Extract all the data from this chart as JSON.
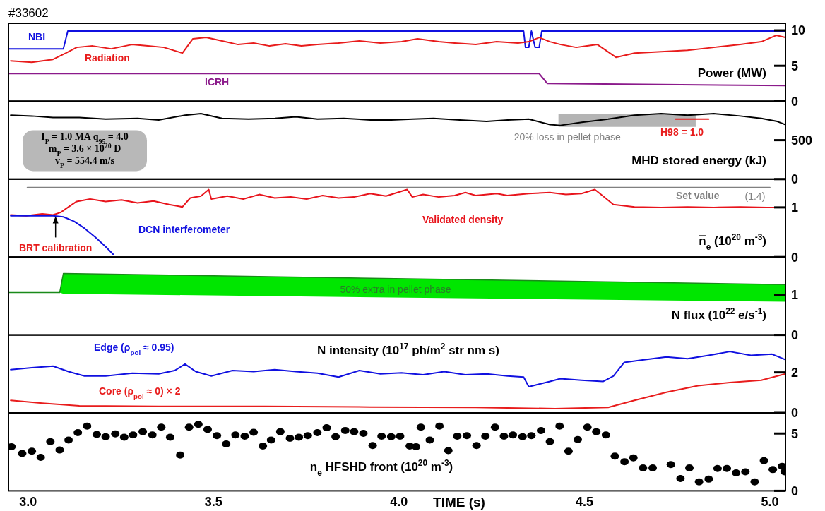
{
  "chart_data": [
    {
      "type": "line",
      "title": "#33602",
      "ylabel": "Power (MW)",
      "xlim": [
        2.947,
        5.042
      ],
      "ylim": [
        0,
        11
      ],
      "yticks": [
        0,
        5,
        10
      ],
      "tick_labels": "y",
      "series": [
        {
          "name": "NBI",
          "color": "#1010e0",
          "x": [
            2.947,
            3.095,
            3.107,
            4.336,
            4.341,
            4.35,
            4.357,
            4.367,
            4.378,
            4.385,
            5.042
          ],
          "values": [
            7.4,
            7.4,
            9.9,
            9.9,
            7.6,
            7.6,
            9.9,
            7.6,
            7.6,
            9.9,
            9.9
          ]
        },
        {
          "name": "Radiation",
          "color": "#e81c1c",
          "x": [
            2.953,
            3.01,
            3.067,
            3.102,
            3.131,
            3.174,
            3.224,
            3.28,
            3.323,
            3.366,
            3.416,
            3.444,
            3.48,
            3.523,
            3.566,
            3.608,
            3.651,
            3.694,
            3.737,
            3.78,
            3.837,
            3.893,
            3.95,
            4.007,
            4.05,
            4.107,
            4.15,
            4.207,
            4.263,
            4.321,
            4.35,
            4.378,
            4.407,
            4.436,
            4.478,
            4.507,
            4.535,
            4.585,
            4.635,
            4.707,
            4.778,
            4.849,
            4.92,
            4.977,
            5.017,
            5.042
          ],
          "values": [
            5.7,
            5.5,
            5.9,
            6.8,
            7.6,
            7.8,
            7.4,
            8.0,
            7.8,
            7.6,
            6.8,
            8.8,
            9.0,
            8.5,
            8.0,
            8.2,
            7.8,
            8.1,
            7.8,
            8.0,
            8.2,
            8.5,
            8.2,
            8.4,
            8.8,
            8.4,
            8.2,
            8.0,
            8.4,
            8.2,
            8.4,
            9.0,
            8.4,
            8.0,
            7.6,
            7.8,
            8.0,
            6.2,
            6.8,
            7.0,
            7.2,
            7.6,
            8.0,
            8.4,
            9.3,
            9.0
          ]
        },
        {
          "name": "ICRH",
          "color": "#8b1a8b",
          "x": [
            2.947,
            4.378,
            4.4,
            5.042
          ],
          "values": [
            3.9,
            3.9,
            2.5,
            2.2
          ]
        }
      ]
    },
    {
      "type": "line",
      "ylabel": "MHD stored energy (kJ)",
      "xlim": [
        2.947,
        5.042
      ],
      "ylim": [
        0,
        1000
      ],
      "yticks": [
        0,
        500
      ],
      "tick_labels": "y",
      "annotations": [
        "I$_{P}$ = 1.0 MA  q$_{95}$ = 4.0",
        "m$_{P}$ = 3.6 × 10$^{20}$ D",
        "v$_{P}$ = 554.4 m/s",
        {
          "text": "20% loss in pellet phase",
          "x": 4.454,
          "y": 670
        }
      ],
      "series": [
        {
          "color": "#b4b4b4",
          "x": [
            4.43,
            4.8
          ],
          "values": [
            null,
            null
          ],
          "lower": [
            670,
            670
          ],
          "upper": [
            840,
            840
          ]
        },
        {
          "color": "#000000",
          "x": [
            2.953,
            3.01,
            3.067,
            3.138,
            3.209,
            3.295,
            3.352,
            3.423,
            3.466,
            3.523,
            3.594,
            3.665,
            3.722,
            3.78,
            3.851,
            3.923,
            3.979,
            4.036,
            4.093,
            4.164,
            4.236,
            4.293,
            4.35,
            4.407,
            4.435,
            4.493,
            4.564,
            4.635,
            4.707,
            4.778,
            4.849,
            4.92,
            4.977,
            5.02,
            5.042
          ],
          "values": [
            820,
            810,
            790,
            790,
            770,
            780,
            760,
            820,
            840,
            780,
            770,
            780,
            800,
            770,
            780,
            760,
            760,
            770,
            780,
            760,
            740,
            760,
            770,
            700,
            690,
            730,
            770,
            820,
            840,
            820,
            840,
            810,
            780,
            740,
            700
          ]
        },
        {
          "name": "H98 = 1.0",
          "color": "#e81c1c",
          "x": [
            4.746,
            4.835
          ],
          "values": [
            770,
            770
          ]
        }
      ]
    },
    {
      "type": "line",
      "ylabel": "n̅$_{e}$ (10$^{20}$ m$^{-3}$)",
      "xlim": [
        2.947,
        5.042
      ],
      "ylim": [
        0,
        1.57
      ],
      "yticks": [
        0,
        1
      ],
      "tick_labels": "y",
      "annotations": [
        {
          "text": "(1.4)",
          "x": 4.96,
          "y": 1.4
        },
        {
          "text": "BRT calibration",
          "x": 3.074,
          "y": 0.85
        }
      ],
      "series": [
        {
          "name": "Set value",
          "color": "#808080",
          "x": [
            2.998,
            5.0
          ],
          "values": [
            1.4,
            1.4
          ]
        },
        {
          "name": "Validated density",
          "color": "#e8141c",
          "x": [
            2.953,
            2.995,
            3.038,
            3.067,
            3.088,
            3.109,
            3.131,
            3.167,
            3.209,
            3.252,
            3.295,
            3.338,
            3.38,
            3.416,
            3.437,
            3.466,
            3.487,
            3.494,
            3.537,
            3.58,
            3.623,
            3.665,
            3.708,
            3.751,
            3.794,
            3.837,
            3.879,
            3.922,
            3.965,
            4.022,
            4.036,
            4.065,
            4.107,
            4.15,
            4.179,
            4.207,
            4.264,
            4.292,
            4.35,
            4.407,
            4.45,
            4.492,
            4.528,
            4.55,
            4.578,
            4.635,
            4.707,
            4.778,
            4.849,
            4.92,
            4.991,
            5.042
          ],
          "values": [
            0.85,
            0.83,
            0.87,
            0.85,
            0.9,
            1.01,
            1.12,
            1.17,
            1.12,
            1.15,
            1.09,
            1.13,
            1.06,
            1.01,
            1.19,
            1.23,
            1.36,
            1.17,
            1.23,
            1.17,
            1.26,
            1.19,
            1.21,
            1.17,
            1.24,
            1.19,
            1.21,
            1.28,
            1.23,
            1.36,
            1.21,
            1.26,
            1.21,
            1.24,
            1.3,
            1.24,
            1.28,
            1.24,
            1.28,
            1.3,
            1.26,
            1.28,
            1.36,
            1.23,
            1.06,
            1.01,
            1.0,
            1.01,
            1.0,
            1.01,
            1.0,
            1.0
          ]
        },
        {
          "name": "DCN interferometer",
          "color": "#1010e0",
          "x": [
            2.953,
            3.067,
            3.095,
            3.124,
            3.152,
            3.181,
            3.209,
            3.23
          ],
          "values": [
            0.83,
            0.83,
            0.81,
            0.72,
            0.58,
            0.4,
            0.21,
            0.05
          ]
        }
      ]
    },
    {
      "type": "line",
      "ylabel": "N flux (10$^{22}$ e/s$^{-1}$)",
      "xlim": [
        2.947,
        5.042
      ],
      "ylim": [
        0,
        1.95
      ],
      "yticks": [
        0,
        1
      ],
      "tick_labels": "y",
      "annotations": [
        "50% extra in pellet phase"
      ],
      "series": [
        {
          "color": "#1a8a1a",
          "x": [
            2.947,
            3.085,
            3.095,
            5.042
          ],
          "values": [
            1.06,
            1.06,
            1.54,
            1.26
          ],
          "lower": [
            1.06,
            1.06,
            1.03,
            0.83
          ],
          "upper": [
            1.06,
            1.06,
            1.54,
            1.26
          ]
        }
      ]
    },
    {
      "type": "line",
      "ylabel": "N intensity (10$^{17}$ ph/m$^{2}$ str nm s)",
      "xlim": [
        2.947,
        5.042
      ],
      "ylim": [
        0,
        3.85
      ],
      "yticks": [
        0,
        2
      ],
      "tick_labels": "y",
      "series": [
        {
          "name": "Edge (ρ$_{pol}$ ≈ 0.95)",
          "color": "#1010e0",
          "x": [
            2.953,
            3.01,
            3.067,
            3.109,
            3.152,
            3.209,
            3.281,
            3.352,
            3.395,
            3.423,
            3.452,
            3.494,
            3.551,
            3.608,
            3.665,
            3.722,
            3.78,
            3.837,
            3.893,
            3.95,
            4.007,
            4.065,
            4.122,
            4.179,
            4.236,
            4.293,
            4.336,
            4.35,
            4.378,
            4.407,
            4.435,
            4.492,
            4.55,
            4.578,
            4.607,
            4.664,
            4.721,
            4.778,
            4.835,
            4.892,
            4.949,
            5.006,
            5.042
          ],
          "values": [
            2.14,
            2.23,
            2.31,
            2.04,
            1.82,
            1.82,
            1.96,
            1.93,
            2.09,
            2.41,
            2.04,
            1.82,
            2.09,
            2.04,
            2.14,
            2.04,
            1.96,
            1.77,
            2.09,
            1.93,
            1.98,
            1.88,
            2.04,
            1.88,
            1.93,
            1.82,
            1.77,
            1.29,
            1.42,
            1.55,
            1.69,
            1.61,
            1.55,
            1.82,
            2.49,
            2.63,
            2.76,
            2.68,
            2.84,
            3.03,
            2.84,
            2.9,
            2.63
          ]
        },
        {
          "name": "Core (ρ$_{pol}$ ≈ 0) × 2",
          "color": "#e81c1c",
          "x": [
            2.953,
            3.038,
            3.138,
            3.352,
            3.637,
            3.922,
            4.207,
            4.421,
            4.564,
            4.635,
            4.721,
            4.806,
            4.892,
            4.977,
            5.042
          ],
          "values": [
            0.62,
            0.48,
            0.35,
            0.32,
            0.32,
            0.29,
            0.27,
            0.21,
            0.27,
            0.62,
            1.02,
            1.34,
            1.5,
            1.61,
            1.93
          ]
        }
      ]
    },
    {
      "type": "scatter",
      "ylabel": "n$_{e}$ HFSHD front (10$^{20}$ m$^{-3}$)",
      "xlabel": "TIME (s)",
      "xlim": [
        2.947,
        5.042
      ],
      "ylim": [
        0,
        6.8
      ],
      "yticks": [
        0,
        5
      ],
      "xticks": [
        {
          "value": 3,
          "label": "3.0"
        },
        {
          "value": 3.5,
          "label": "3.5"
        },
        {
          "value": 4,
          "label": "4.0"
        },
        {
          "value": 4.5,
          "label": "4.5"
        },
        {
          "value": 5,
          "label": "5.0"
        }
      ],
      "series": [
        {
          "color": "#000000",
          "x": [
            2.955,
            2.984,
            3.01,
            3.034,
            3.06,
            3.085,
            3.109,
            3.134,
            3.159,
            3.185,
            3.209,
            3.235,
            3.259,
            3.283,
            3.309,
            3.335,
            3.359,
            3.383,
            3.41,
            3.434,
            3.459,
            3.484,
            3.509,
            3.534,
            3.559,
            3.584,
            3.608,
            3.633,
            3.655,
            3.68,
            3.706,
            3.73,
            3.754,
            3.78,
            3.805,
            3.829,
            3.855,
            3.879,
            3.904,
            3.929,
            3.953,
            3.979,
            4.003,
            4.029,
            4.046,
            4.059,
            4.083,
            4.109,
            4.133,
            4.157,
            4.183,
            4.209,
            4.233,
            4.259,
            4.283,
            4.307,
            4.333,
            4.357,
            4.383,
            4.407,
            4.433,
            4.457,
            4.482,
            4.508,
            4.532,
            4.558,
            4.582,
            4.608,
            4.632,
            4.658,
            4.684,
            4.733,
            4.759,
            4.783,
            4.809,
            4.835,
            4.859,
            4.884,
            4.909,
            4.934,
            4.959,
            4.984,
            5.008,
            5.033,
            5.04
          ],
          "values": [
            3.85,
            3.26,
            3.46,
            2.92,
            4.29,
            3.56,
            4.43,
            5.07,
            5.65,
            4.92,
            4.72,
            4.97,
            4.68,
            4.87,
            5.16,
            4.87,
            5.55,
            4.68,
            3.12,
            5.55,
            5.8,
            5.36,
            4.82,
            4.09,
            4.87,
            4.77,
            5.11,
            3.9,
            4.43,
            5.16,
            4.58,
            4.68,
            4.82,
            5.07,
            5.5,
            4.72,
            5.26,
            5.16,
            5.02,
            3.95,
            4.77,
            4.72,
            4.77,
            3.9,
            3.85,
            5.55,
            4.43,
            5.65,
            3.51,
            4.77,
            4.82,
            3.95,
            4.77,
            5.55,
            4.77,
            4.87,
            4.72,
            4.82,
            5.26,
            4.29,
            5.65,
            3.46,
            4.48,
            5.55,
            5.16,
            4.87,
            3.02,
            2.53,
            2.87,
            2.0,
            2.0,
            2.29,
            1.07,
            2.0,
            0.78,
            1.02,
            1.95,
            1.95,
            1.56,
            1.66,
            0.78,
            2.63,
            1.85,
            2.14,
            1.66
          ]
        }
      ]
    }
  ]
}
